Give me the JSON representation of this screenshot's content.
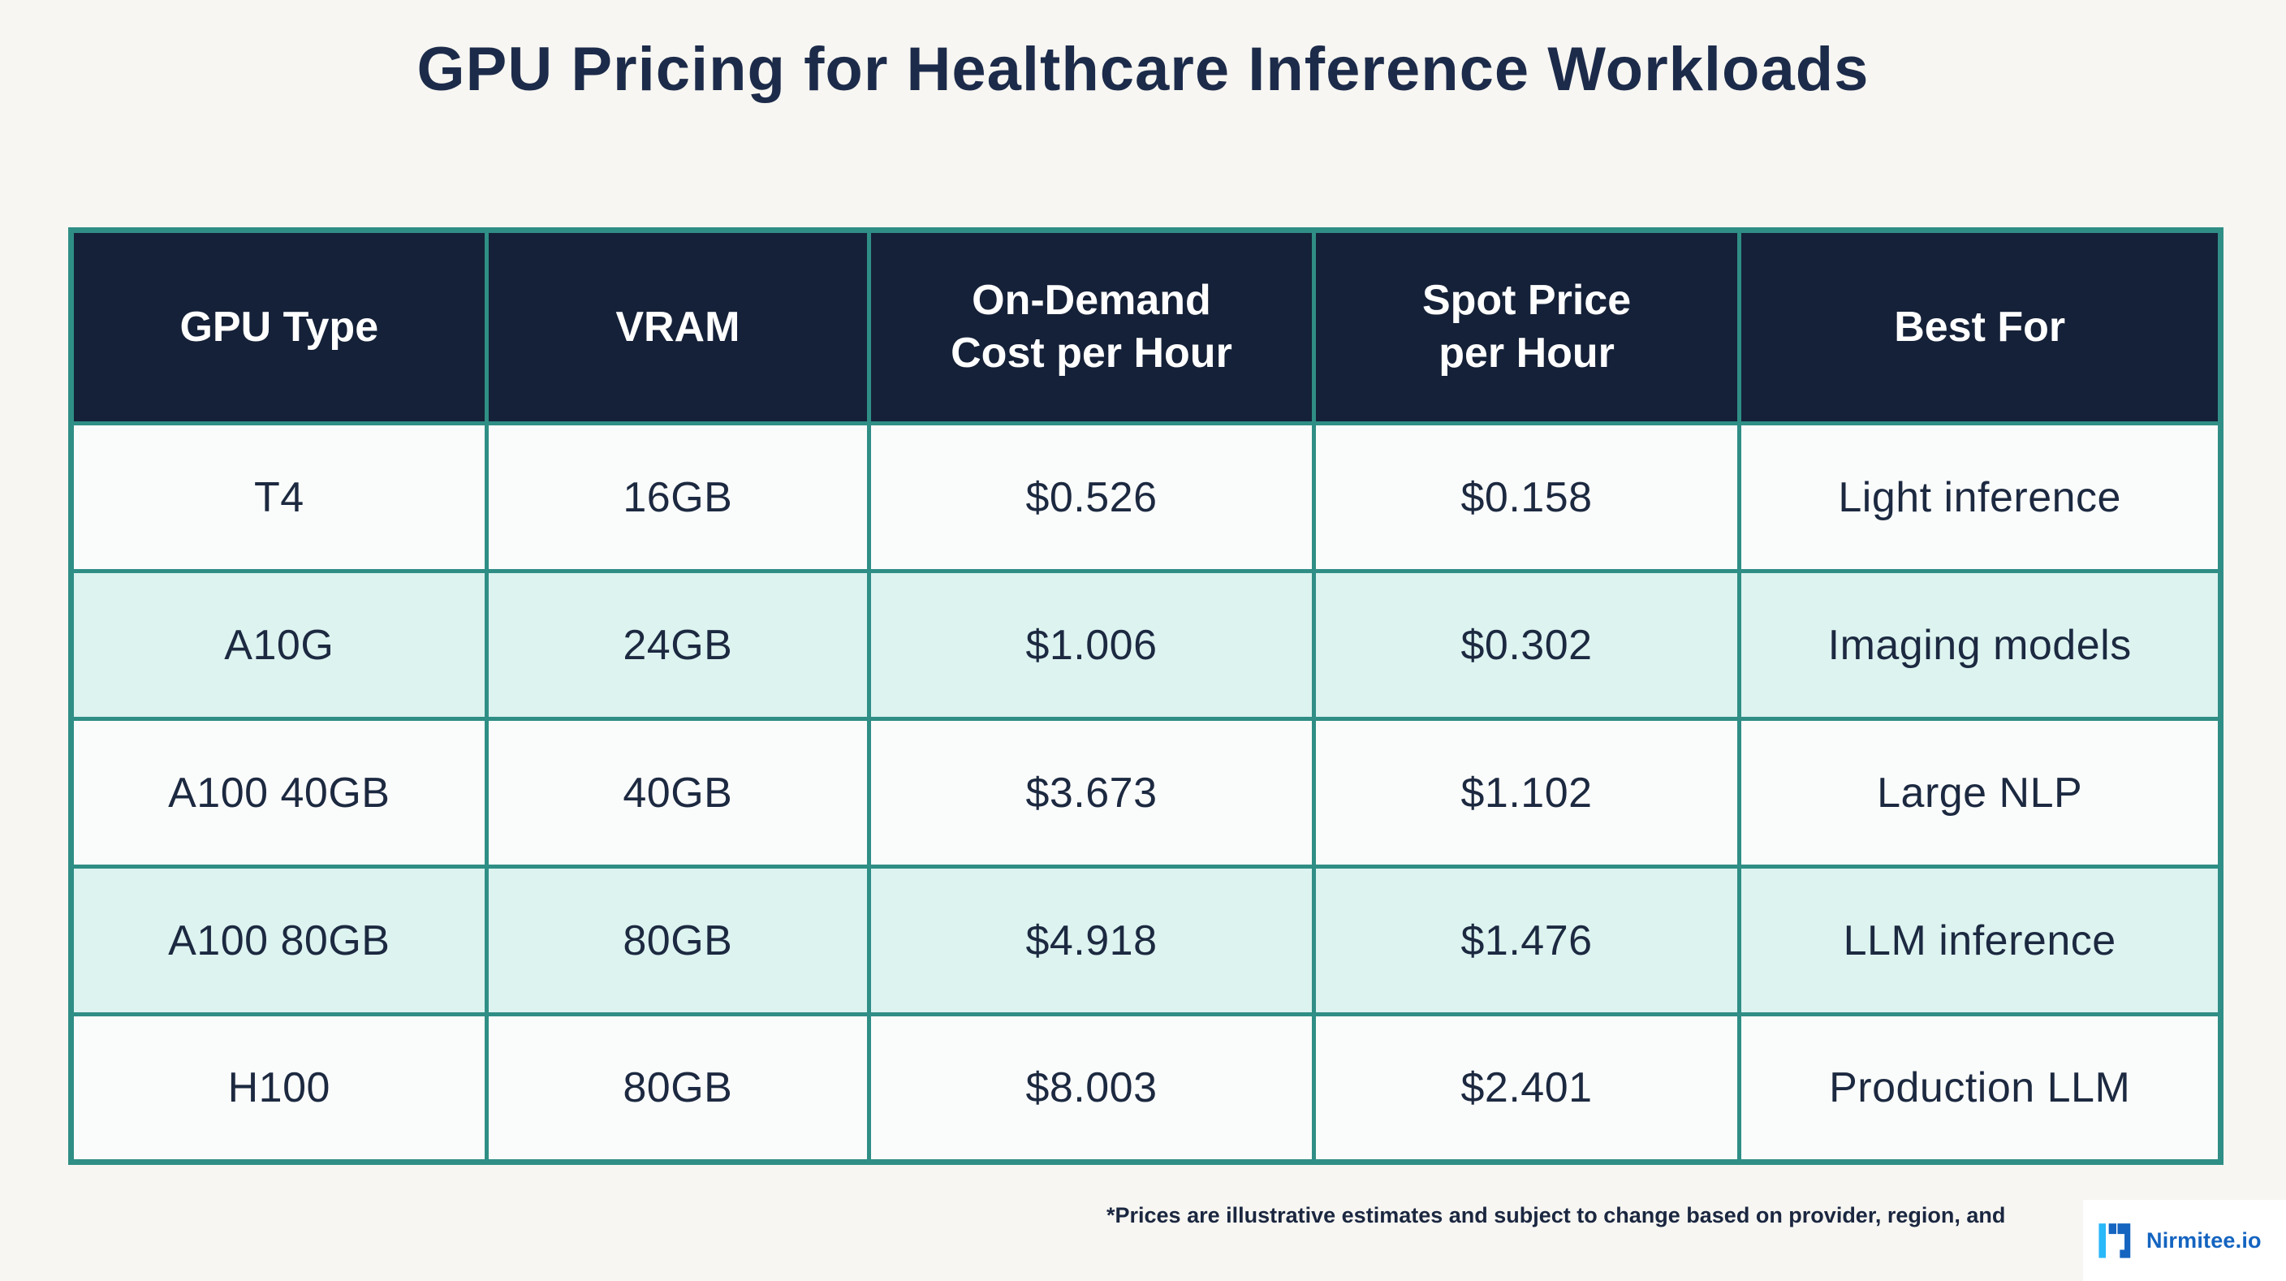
{
  "title": "GPU Pricing for Healthcare Inference Workloads",
  "chart_data": {
    "type": "table",
    "title": "GPU Pricing for Healthcare Inference Workloads",
    "columns": [
      "GPU Type",
      "VRAM",
      "On-Demand Cost per Hour",
      "Spot Price per Hour",
      "Best For"
    ],
    "rows": [
      [
        "T4",
        "16GB",
        "$0.526",
        "$0.158",
        "Light inference"
      ],
      [
        "A10G",
        "24GB",
        "$1.006",
        "$0.302",
        "Imaging models"
      ],
      [
        "A100 40GB",
        "40GB",
        "$3.673",
        "$1.102",
        "Large NLP"
      ],
      [
        "A100 80GB",
        "80GB",
        "$4.918",
        "$1.476",
        "LLM inference"
      ],
      [
        "H100",
        "80GB",
        "$8.003",
        "$2.401",
        "Production LLM"
      ]
    ]
  },
  "table": {
    "columns": [
      "GPU Type",
      "VRAM",
      "On-Demand\nCost per Hour",
      "Spot Price\nper Hour",
      "Best For"
    ],
    "rows": [
      [
        "T4",
        "16GB",
        "$0.526",
        "$0.158",
        "Light inference"
      ],
      [
        "A10G",
        "24GB",
        "$1.006",
        "$0.302",
        "Imaging models"
      ],
      [
        "A100 40GB",
        "40GB",
        "$3.673",
        "$1.102",
        "Large NLP"
      ],
      [
        "A100 80GB",
        "80GB",
        "$4.918",
        "$1.476",
        "LLM inference"
      ],
      [
        "H100",
        "80GB",
        "$8.003",
        "$2.401",
        "Production LLM"
      ]
    ]
  },
  "footnote": "*Prices are illustrative estimates and subject to change based on provider, region, and",
  "logo": {
    "text": "Nirmitee.io",
    "icon": "nirmitee-logo-icon"
  },
  "colors": {
    "bg": "#f7f6f2",
    "header_bg": "#152138",
    "border_teal": "#2f8e85",
    "row_white": "#fafcfb",
    "row_mint": "#dcf3f0",
    "text_navy": "#1c2940",
    "logo_blue": "#1464c0",
    "logo_cyan": "#29b8f8"
  }
}
